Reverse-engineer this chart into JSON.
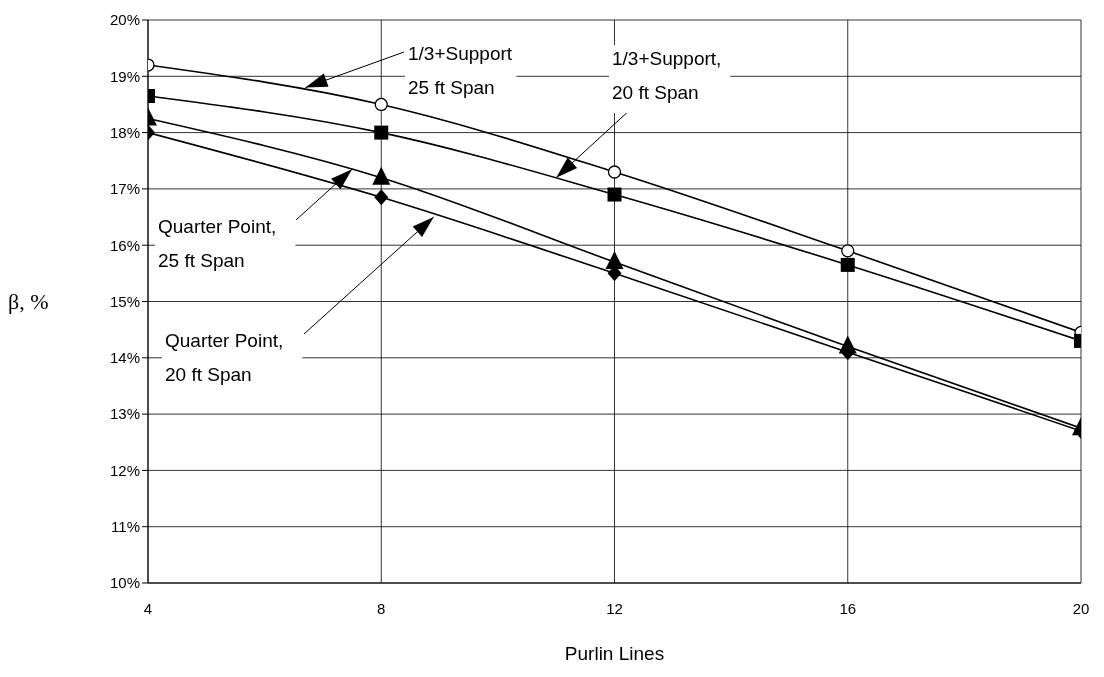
{
  "chart_data": {
    "type": "line",
    "xlabel": "Purlin Lines",
    "ylabel": "β, %",
    "x": [
      4,
      8,
      12,
      16,
      20
    ],
    "xlim": [
      4,
      20
    ],
    "xticks": [
      4,
      8,
      12,
      16,
      20
    ],
    "ylim": [
      10,
      20
    ],
    "yticks": [
      {
        "value": 10,
        "label": "10%"
      },
      {
        "value": 11,
        "label": "11%"
      },
      {
        "value": 12,
        "label": "12%"
      },
      {
        "value": 13,
        "label": "13%"
      },
      {
        "value": 14,
        "label": "14%"
      },
      {
        "value": 15,
        "label": "15%"
      },
      {
        "value": 16,
        "label": "16%"
      },
      {
        "value": 17,
        "label": "17%"
      },
      {
        "value": 18,
        "label": "18%"
      },
      {
        "value": 19,
        "label": "19%"
      },
      {
        "value": 20,
        "label": "20%"
      }
    ],
    "grid": true,
    "line_style": "solid",
    "series": [
      {
        "color": "#000000",
        "marker": "circle",
        "values": [
          19.2,
          18.5,
          17.3,
          15.9,
          14.45
        ]
      },
      {
        "color": "#000000",
        "marker": "square",
        "values": [
          18.65,
          18.0,
          16.9,
          15.65,
          14.3
        ]
      },
      {
        "color": "#000000",
        "marker": "triangle",
        "values": [
          18.25,
          17.2,
          15.7,
          14.2,
          12.75
        ]
      },
      {
        "color": "#000000",
        "marker": "diamond",
        "values": [
          18.0,
          16.85,
          15.5,
          14.1,
          12.7
        ]
      }
    ],
    "annotations": [
      {
        "text": "1/3+Support\n25 ft Span",
        "x": 6.7,
        "y": 18.8
      },
      {
        "text": "1/3+Support,\n20 ft Span",
        "x": 11,
        "y": 17.2
      },
      {
        "text": "Quarter Point,\n25 ft Span",
        "x": 7.5,
        "y": 17.35
      },
      {
        "text": "Quarter Point,\n20 ft Span",
        "x": 8.9,
        "y": 16.5
      }
    ]
  }
}
